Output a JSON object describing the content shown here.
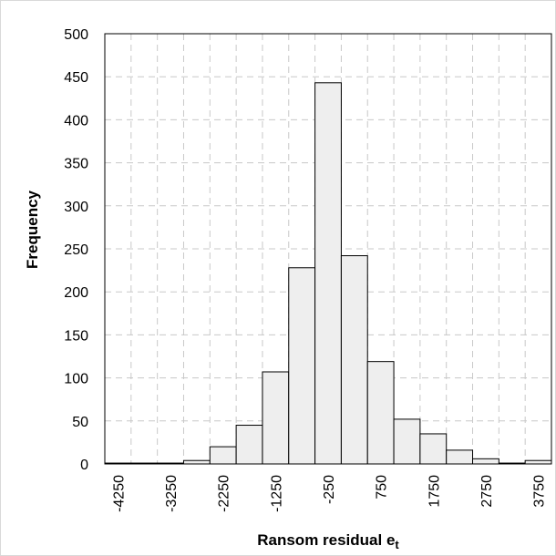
{
  "chart_data": {
    "type": "bar",
    "subtype": "histogram",
    "x": [
      -4250,
      -3750,
      -3250,
      -2750,
      -2250,
      -1750,
      -1250,
      -750,
      -250,
      250,
      750,
      1250,
      1750,
      2250,
      2750,
      3250,
      3750
    ],
    "values": [
      1,
      1,
      1,
      4,
      20,
      45,
      107,
      228,
      443,
      242,
      119,
      52,
      35,
      16,
      6,
      1,
      4
    ],
    "tick_labels": [
      "-4250",
      "-3250",
      "-2250",
      "-1250",
      "-250",
      "750",
      "1750",
      "2750",
      "3750"
    ],
    "xlabel": "Ransom residual e",
    "xlabel_subscript": "t",
    "ylabel": "Frequency",
    "ylim": [
      0,
      500
    ],
    "yticks": [
      0,
      50,
      100,
      150,
      200,
      250,
      300,
      350,
      400,
      450,
      500
    ],
    "grid": true,
    "colors": {
      "bar_fill": "#eeeeee",
      "bar_stroke": "#000000",
      "grid": "#c8c8c8"
    }
  }
}
